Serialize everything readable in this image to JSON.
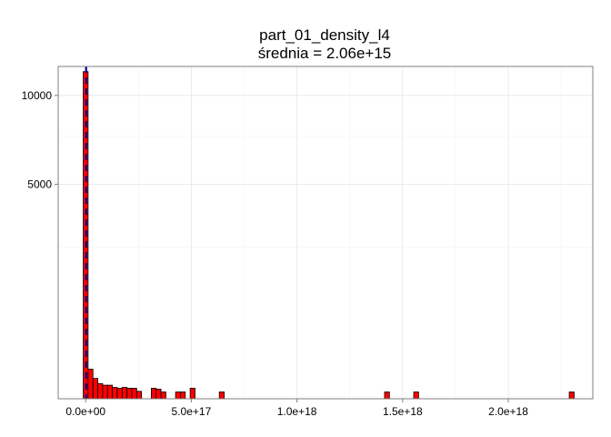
{
  "chart_data": {
    "type": "bar",
    "title": "part_01_density_l4",
    "subtitle": "średnia = 2.06e+15",
    "xlabel": "",
    "ylabel": "",
    "x_scale": "linear",
    "y_scale": "sqrt",
    "xlim": [
      -1.3e+17,
      2.4e+18
    ],
    "ylim": [
      0,
      12000
    ],
    "x_ticks": [
      0,
      5e+17,
      1e+18,
      1.5e+18,
      2e+18
    ],
    "x_tick_labels": [
      "0.0e+00",
      "5.0e+17",
      "1.0e+18",
      "1.5e+18",
      "2.0e+18"
    ],
    "y_ticks": [
      5000,
      10000
    ],
    "y_tick_labels": [
      "5000",
      "10000"
    ],
    "grid": true,
    "legend": "none",
    "mean_line": {
      "x": 2060000000000000.0,
      "color": "#00008b",
      "style": "dashed"
    },
    "bar_fill": "#ff0000",
    "bar_outline": "#000000",
    "bin_width": 2.3e+16,
    "bins": [
      {
        "x0": -1.15e+16,
        "count": 11630
      },
      {
        "x0": 1.15e+16,
        "count": 95
      },
      {
        "x0": 3.45e+16,
        "count": 45
      },
      {
        "x0": 5.75e+16,
        "count": 25
      },
      {
        "x0": 8.05e+16,
        "count": 20
      },
      {
        "x0": 1.035e+17,
        "count": 20
      },
      {
        "x0": 1.265e+17,
        "count": 14
      },
      {
        "x0": 1.495e+17,
        "count": 12
      },
      {
        "x0": 1.725e+17,
        "count": 14
      },
      {
        "x0": 1.955e+17,
        "count": 12
      },
      {
        "x0": 2.185e+17,
        "count": 12
      },
      {
        "x0": 2.415e+17,
        "count": 6
      },
      {
        "x0": 3.105e+17,
        "count": 12
      },
      {
        "x0": 3.335e+17,
        "count": 10
      },
      {
        "x0": 3.565e+17,
        "count": 5
      },
      {
        "x0": 4.255e+17,
        "count": 5
      },
      {
        "x0": 4.485e+17,
        "count": 5
      },
      {
        "x0": 4.945e+17,
        "count": 12
      },
      {
        "x0": 6.325e+17,
        "count": 5
      },
      {
        "x0": 1.4145e+18,
        "count": 5
      },
      {
        "x0": 1.5525e+18,
        "count": 5
      },
      {
        "x0": 2.2885e+18,
        "count": 5
      }
    ]
  }
}
